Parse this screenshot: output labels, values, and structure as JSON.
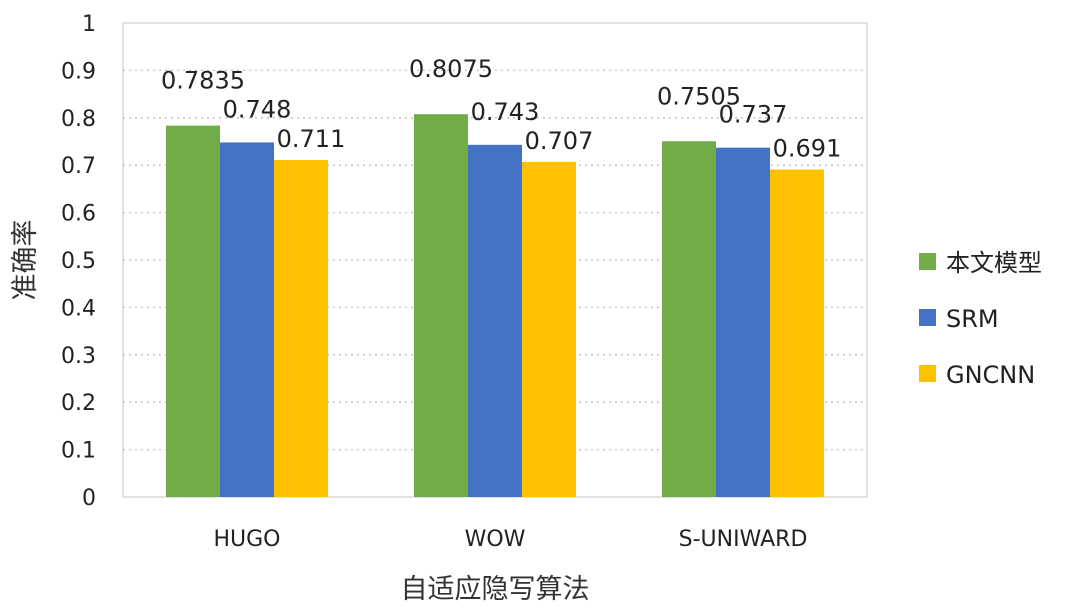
{
  "chart_data": {
    "type": "bar",
    "categories": [
      "HUGO",
      "WOW",
      "S-UNIWARD"
    ],
    "series": [
      {
        "name": "本文模型",
        "values": [
          0.7835,
          0.8075,
          0.7505
        ],
        "labels": [
          "0.7835",
          "0.8075",
          "0.7505"
        ],
        "color": "#70ad47"
      },
      {
        "name": "SRM",
        "values": [
          0.748,
          0.743,
          0.737
        ],
        "labels": [
          "0.748",
          "0.743",
          "0.737"
        ],
        "color": "#4472c4"
      },
      {
        "name": "GNCNN",
        "values": [
          0.711,
          0.707,
          0.691
        ],
        "labels": [
          "0.711",
          "0.707",
          "0.691"
        ],
        "color": "#ffc000"
      }
    ],
    "xlabel": "自适应隐写算法",
    "ylabel": "准确率",
    "ylim": [
      0,
      1
    ],
    "yticks": [
      "0",
      "0.1",
      "0.2",
      "0.3",
      "0.4",
      "0.5",
      "0.6",
      "0.7",
      "0.8",
      "0.9",
      "1"
    ],
    "grid": true,
    "legend_position": "right"
  }
}
